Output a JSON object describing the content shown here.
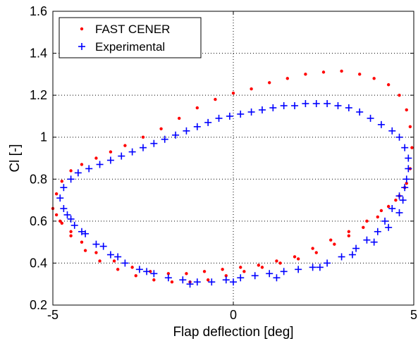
{
  "chart_data": {
    "type": "scatter",
    "xlabel": "Flap deflection [deg]",
    "ylabel": "Cl [-]",
    "xlim": [
      -5,
      5
    ],
    "ylim": [
      0.2,
      1.6
    ],
    "xticks": [
      -5,
      0,
      5
    ],
    "yticks": [
      0.2,
      0.4,
      0.6,
      0.8,
      1,
      1.2,
      1.4,
      1.6
    ],
    "xtick_labels": [
      "-5",
      "0",
      "5"
    ],
    "ytick_labels": [
      "0.2",
      "0.4",
      "0.6",
      "0.8",
      "1",
      "1.2",
      "1.4",
      "1.6"
    ],
    "grid": "dotted",
    "legend_position": "top-left",
    "series": [
      {
        "name": "FAST CENER",
        "color": "#ff0000",
        "marker": "dot",
        "points": [
          [
            -5.0,
            0.66
          ],
          [
            -4.9,
            0.73
          ],
          [
            -4.75,
            0.79
          ],
          [
            -4.5,
            0.84
          ],
          [
            -4.2,
            0.87
          ],
          [
            -3.8,
            0.9
          ],
          [
            -3.4,
            0.93
          ],
          [
            -3.0,
            0.96
          ],
          [
            -2.5,
            1.0
          ],
          [
            -2.0,
            1.04
          ],
          [
            -1.5,
            1.09
          ],
          [
            -1.0,
            1.14
          ],
          [
            -0.5,
            1.18
          ],
          [
            0.0,
            1.21
          ],
          [
            0.5,
            1.23
          ],
          [
            1.0,
            1.26
          ],
          [
            1.5,
            1.28
          ],
          [
            2.0,
            1.3
          ],
          [
            2.5,
            1.31
          ],
          [
            3.0,
            1.315
          ],
          [
            3.5,
            1.3
          ],
          [
            3.9,
            1.28
          ],
          [
            4.3,
            1.25
          ],
          [
            4.6,
            1.2
          ],
          [
            4.8,
            1.13
          ],
          [
            4.9,
            1.05
          ],
          [
            4.95,
            0.95
          ],
          [
            4.9,
            0.85
          ],
          [
            4.8,
            0.78
          ],
          [
            4.6,
            0.72
          ],
          [
            4.3,
            0.67
          ],
          [
            4.0,
            0.62
          ],
          [
            3.6,
            0.57
          ],
          [
            3.2,
            0.53
          ],
          [
            2.8,
            0.49
          ],
          [
            2.3,
            0.45
          ],
          [
            1.8,
            0.42
          ],
          [
            1.3,
            0.4
          ],
          [
            0.8,
            0.38
          ],
          [
            0.3,
            0.36
          ],
          [
            -0.2,
            0.34
          ],
          [
            -0.7,
            0.32
          ],
          [
            -1.2,
            0.31
          ],
          [
            -1.7,
            0.31
          ],
          [
            -2.2,
            0.32
          ],
          [
            -2.7,
            0.34
          ],
          [
            -3.2,
            0.37
          ],
          [
            -3.7,
            0.41
          ],
          [
            -4.1,
            0.46
          ],
          [
            -4.5,
            0.53
          ],
          [
            -4.75,
            0.59
          ],
          [
            -4.9,
            0.63
          ],
          [
            -4.8,
            0.6
          ],
          [
            -4.5,
            0.55
          ],
          [
            -4.2,
            0.5
          ],
          [
            -3.8,
            0.45
          ],
          [
            -3.3,
            0.41
          ],
          [
            -2.8,
            0.38
          ],
          [
            -2.3,
            0.36
          ],
          [
            -1.8,
            0.35
          ],
          [
            -1.3,
            0.35
          ],
          [
            -0.8,
            0.36
          ],
          [
            -0.3,
            0.37
          ],
          [
            0.2,
            0.38
          ],
          [
            0.7,
            0.39
          ],
          [
            1.2,
            0.41
          ],
          [
            1.7,
            0.43
          ],
          [
            2.2,
            0.47
          ],
          [
            2.7,
            0.51
          ],
          [
            3.2,
            0.55
          ],
          [
            3.7,
            0.6
          ],
          [
            4.1,
            0.65
          ],
          [
            4.5,
            0.7
          ],
          [
            4.75,
            0.76
          ]
        ]
      },
      {
        "name": "Experimental",
        "color": "#0000ff",
        "marker": "plus",
        "points": [
          [
            -4.8,
            0.71
          ],
          [
            -4.7,
            0.76
          ],
          [
            -4.5,
            0.8
          ],
          [
            -4.3,
            0.83
          ],
          [
            -4.0,
            0.85
          ],
          [
            -3.7,
            0.87
          ],
          [
            -3.4,
            0.89
          ],
          [
            -3.1,
            0.91
          ],
          [
            -2.8,
            0.93
          ],
          [
            -2.5,
            0.95
          ],
          [
            -2.2,
            0.97
          ],
          [
            -1.9,
            0.99
          ],
          [
            -1.6,
            1.01
          ],
          [
            -1.3,
            1.03
          ],
          [
            -1.0,
            1.05
          ],
          [
            -0.7,
            1.07
          ],
          [
            -0.4,
            1.09
          ],
          [
            -0.1,
            1.1
          ],
          [
            0.2,
            1.11
          ],
          [
            0.5,
            1.12
          ],
          [
            0.8,
            1.13
          ],
          [
            1.1,
            1.14
          ],
          [
            1.4,
            1.15
          ],
          [
            1.7,
            1.15
          ],
          [
            2.0,
            1.16
          ],
          [
            2.3,
            1.16
          ],
          [
            2.6,
            1.16
          ],
          [
            2.9,
            1.15
          ],
          [
            3.2,
            1.14
          ],
          [
            3.5,
            1.12
          ],
          [
            3.8,
            1.09
          ],
          [
            4.1,
            1.06
          ],
          [
            4.4,
            1.03
          ],
          [
            4.6,
            1.0
          ],
          [
            4.75,
            0.95
          ],
          [
            4.85,
            0.9
          ],
          [
            4.85,
            0.85
          ],
          [
            4.8,
            0.8
          ],
          [
            4.75,
            0.76
          ],
          [
            4.6,
            0.72
          ],
          [
            4.4,
            0.66
          ],
          [
            4.2,
            0.6
          ],
          [
            4.0,
            0.55
          ],
          [
            3.7,
            0.51
          ],
          [
            3.4,
            0.47
          ],
          [
            3.0,
            0.43
          ],
          [
            2.6,
            0.4
          ],
          [
            2.2,
            0.38
          ],
          [
            1.8,
            0.37
          ],
          [
            1.4,
            0.36
          ],
          [
            1.0,
            0.35
          ],
          [
            0.6,
            0.34
          ],
          [
            0.2,
            0.33
          ],
          [
            -0.2,
            0.32
          ],
          [
            -0.6,
            0.31
          ],
          [
            -1.0,
            0.31
          ],
          [
            -1.4,
            0.32
          ],
          [
            -1.8,
            0.33
          ],
          [
            -2.2,
            0.35
          ],
          [
            -2.6,
            0.37
          ],
          [
            -3.0,
            0.4
          ],
          [
            -3.4,
            0.44
          ],
          [
            -3.8,
            0.49
          ],
          [
            -4.2,
            0.55
          ],
          [
            -4.5,
            0.61
          ],
          [
            -4.7,
            0.66
          ],
          [
            -4.6,
            0.63
          ],
          [
            -4.4,
            0.58
          ],
          [
            -4.1,
            0.54
          ],
          [
            -3.6,
            0.48
          ],
          [
            -3.2,
            0.43
          ],
          [
            -2.4,
            0.36
          ],
          [
            -1.2,
            0.3
          ],
          [
            0.0,
            0.31
          ],
          [
            1.2,
            0.33
          ],
          [
            2.4,
            0.38
          ],
          [
            3.3,
            0.44
          ],
          [
            3.9,
            0.5
          ],
          [
            4.3,
            0.57
          ],
          [
            4.6,
            0.64
          ],
          [
            4.7,
            0.7
          ]
        ]
      }
    ]
  }
}
